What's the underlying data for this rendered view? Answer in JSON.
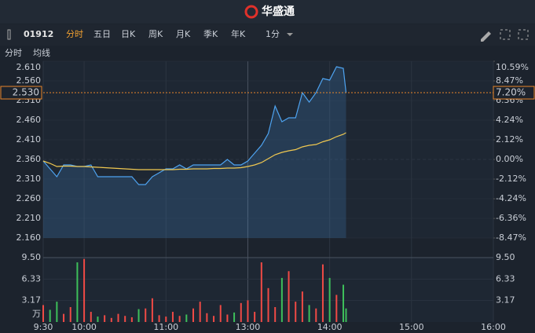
{
  "header": {
    "title": "华盛通"
  },
  "toolbar": {
    "symbol": "01912",
    "tabs": [
      "分时",
      "五日",
      "日K",
      "周K",
      "月K",
      "季K",
      "年K"
    ],
    "period": "1分"
  },
  "chart_data": [
    {
      "type": "line",
      "x": [
        0,
        5,
        10,
        15,
        20,
        25,
        30,
        35,
        40,
        45,
        50,
        55,
        60,
        65,
        70,
        75,
        80,
        85,
        90,
        95,
        100,
        105,
        110,
        115,
        120,
        125,
        130,
        135,
        140,
        145,
        150,
        155,
        160,
        165,
        170,
        175,
        180,
        185,
        190,
        195,
        200,
        205,
        210,
        215,
        220,
        222
      ],
      "series": [
        {
          "name": "分时",
          "color": "#4ea3f0",
          "values": [
            2.356,
            2.336,
            2.316,
            2.346,
            2.346,
            2.342,
            2.342,
            2.346,
            2.316,
            2.316,
            2.316,
            2.316,
            2.316,
            2.316,
            2.296,
            2.296,
            2.316,
            2.326,
            2.336,
            2.336,
            2.346,
            2.336,
            2.346,
            2.346,
            2.346,
            2.346,
            2.346,
            2.36,
            2.346,
            2.346,
            2.356,
            2.376,
            2.396,
            2.426,
            2.496,
            2.456,
            2.466,
            2.466,
            2.53,
            2.506,
            2.53,
            2.566,
            2.562,
            2.596,
            2.592,
            2.53
          ]
        },
        {
          "name": "均线",
          "color": "#f0c850",
          "values": [
            2.356,
            2.35,
            2.342,
            2.343,
            2.343,
            2.342,
            2.342,
            2.341,
            2.34,
            2.339,
            2.338,
            2.337,
            2.336,
            2.335,
            2.334,
            2.334,
            2.334,
            2.334,
            2.334,
            2.334,
            2.335,
            2.335,
            2.336,
            2.336,
            2.336,
            2.337,
            2.337,
            2.338,
            2.338,
            2.339,
            2.342,
            2.346,
            2.352,
            2.362,
            2.372,
            2.378,
            2.382,
            2.385,
            2.392,
            2.396,
            2.398,
            2.405,
            2.41,
            2.418,
            2.424,
            2.428
          ]
        }
      ],
      "xlim": [
        0,
        330
      ],
      "xticks": [
        {
          "value": 0,
          "label": "9:30"
        },
        {
          "value": 30,
          "label": "10:00"
        },
        {
          "value": 90,
          "label": "11:00"
        },
        {
          "value": 150,
          "label": "13:00"
        },
        {
          "value": 210,
          "label": "14:00"
        },
        {
          "value": 270,
          "label": "15:00"
        },
        {
          "value": 330,
          "label": "16:00"
        }
      ],
      "ylim": [
        2.16,
        2.61
      ],
      "yticks": [
        {
          "value": 2.61,
          "label": "2.610"
        },
        {
          "value": 2.56,
          "label": "2.560"
        },
        {
          "value": 2.51,
          "label": "2.510"
        },
        {
          "value": 2.46,
          "label": "2.460"
        },
        {
          "value": 2.41,
          "label": "2.410"
        },
        {
          "value": 2.36,
          "label": "2.360"
        },
        {
          "value": 2.31,
          "label": "2.310"
        },
        {
          "value": 2.26,
          "label": "2.260"
        },
        {
          "value": 2.21,
          "label": "2.210"
        },
        {
          "value": 2.16,
          "label": "2.160"
        }
      ],
      "y2lim": [
        -8.47,
        10.59
      ],
      "y2ticks": [
        {
          "value": 10.59,
          "label": "10.59%"
        },
        {
          "value": 8.47,
          "label": "8.47%"
        },
        {
          "value": 6.36,
          "label": "6.36%"
        },
        {
          "value": 4.24,
          "label": "4.24%"
        },
        {
          "value": 2.12,
          "label": "2.12%"
        },
        {
          "value": 0,
          "label": "0.00%"
        },
        {
          "value": -2.12,
          "label": "-2.12%"
        },
        {
          "value": -4.24,
          "label": "-4.24%"
        },
        {
          "value": -6.36,
          "label": "-6.36%"
        },
        {
          "value": -8.47,
          "label": "-8.47%"
        }
      ],
      "current": {
        "price": {
          "value": 2.53,
          "label": "2.530"
        },
        "change": {
          "value": 7.2,
          "label": "7.20%"
        }
      }
    },
    {
      "type": "bar",
      "unit": "万",
      "x": [
        0,
        5,
        10,
        15,
        20,
        25,
        30,
        35,
        40,
        45,
        50,
        55,
        60,
        65,
        70,
        75,
        80,
        85,
        90,
        95,
        100,
        105,
        110,
        115,
        120,
        125,
        130,
        135,
        140,
        145,
        150,
        155,
        160,
        165,
        170,
        175,
        180,
        185,
        190,
        195,
        200,
        205,
        210,
        215,
        220,
        222
      ],
      "values": [
        2.5,
        1.8,
        3.0,
        1.2,
        2.2,
        8.8,
        9.3,
        1.5,
        0.8,
        1.0,
        0.6,
        1.2,
        0.9,
        0.7,
        1.9,
        2.0,
        3.5,
        1.0,
        0.8,
        1.5,
        0.9,
        1.1,
        2.0,
        3.0,
        1.3,
        0.9,
        2.5,
        1.1,
        1.4,
        2.8,
        3.2,
        1.5,
        8.8,
        5.0,
        2.2,
        6.5,
        7.5,
        3.0,
        4.5,
        2.5,
        2.0,
        8.5,
        6.5,
        4.0,
        5.5,
        2.0
      ],
      "ylim": [
        0,
        9.5
      ],
      "yticks": [
        {
          "value": 9.5,
          "label": "9.50"
        },
        {
          "value": 6.33,
          "label": "6.33"
        },
        {
          "value": 3.17,
          "label": "3.17"
        }
      ]
    }
  ]
}
